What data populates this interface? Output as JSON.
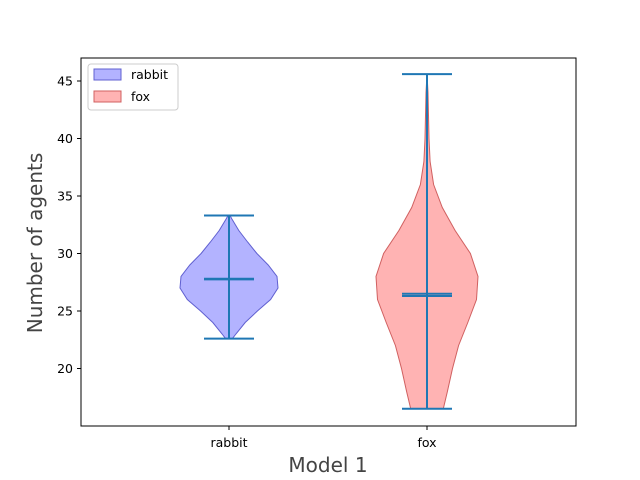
{
  "chart_data": {
    "type": "violin",
    "title": "",
    "xlabel": "Model 1",
    "ylabel": "Number of agents",
    "categories": [
      "rabbit",
      "fox"
    ],
    "ylim": [
      15,
      47
    ],
    "yticks": [
      20,
      25,
      30,
      35,
      40,
      45
    ],
    "grid": false,
    "legend_position": "top-left",
    "series": [
      {
        "name": "rabbit",
        "color": "#8080ff",
        "edge_color": "#6060d0",
        "min": 22.6,
        "max": 33.3,
        "mean": 27.8,
        "median": 27.75,
        "density": [
          [
            22.6,
            0.07
          ],
          [
            23.0,
            0.14
          ],
          [
            24.0,
            0.33
          ],
          [
            25.0,
            0.58
          ],
          [
            26.0,
            0.85
          ],
          [
            27.0,
            1.0
          ],
          [
            28.0,
            0.98
          ],
          [
            29.0,
            0.8
          ],
          [
            30.0,
            0.57
          ],
          [
            31.0,
            0.38
          ],
          [
            32.0,
            0.2
          ],
          [
            33.0,
            0.06
          ],
          [
            33.3,
            0.02
          ]
        ]
      },
      {
        "name": "fox",
        "color": "#ff8080",
        "edge_color": "#d06060",
        "min": 16.5,
        "max": 45.6,
        "mean": 26.5,
        "median": 26.3,
        "density": [
          [
            16.5,
            0.32
          ],
          [
            18.0,
            0.4
          ],
          [
            20.0,
            0.5
          ],
          [
            22.0,
            0.62
          ],
          [
            24.0,
            0.8
          ],
          [
            26.0,
            0.97
          ],
          [
            28.0,
            1.0
          ],
          [
            30.0,
            0.85
          ],
          [
            32.0,
            0.55
          ],
          [
            34.0,
            0.3
          ],
          [
            36.0,
            0.13
          ],
          [
            38.0,
            0.06
          ],
          [
            40.0,
            0.04
          ],
          [
            42.0,
            0.03
          ],
          [
            44.0,
            0.02
          ],
          [
            45.6,
            0.0
          ]
        ]
      }
    ]
  }
}
